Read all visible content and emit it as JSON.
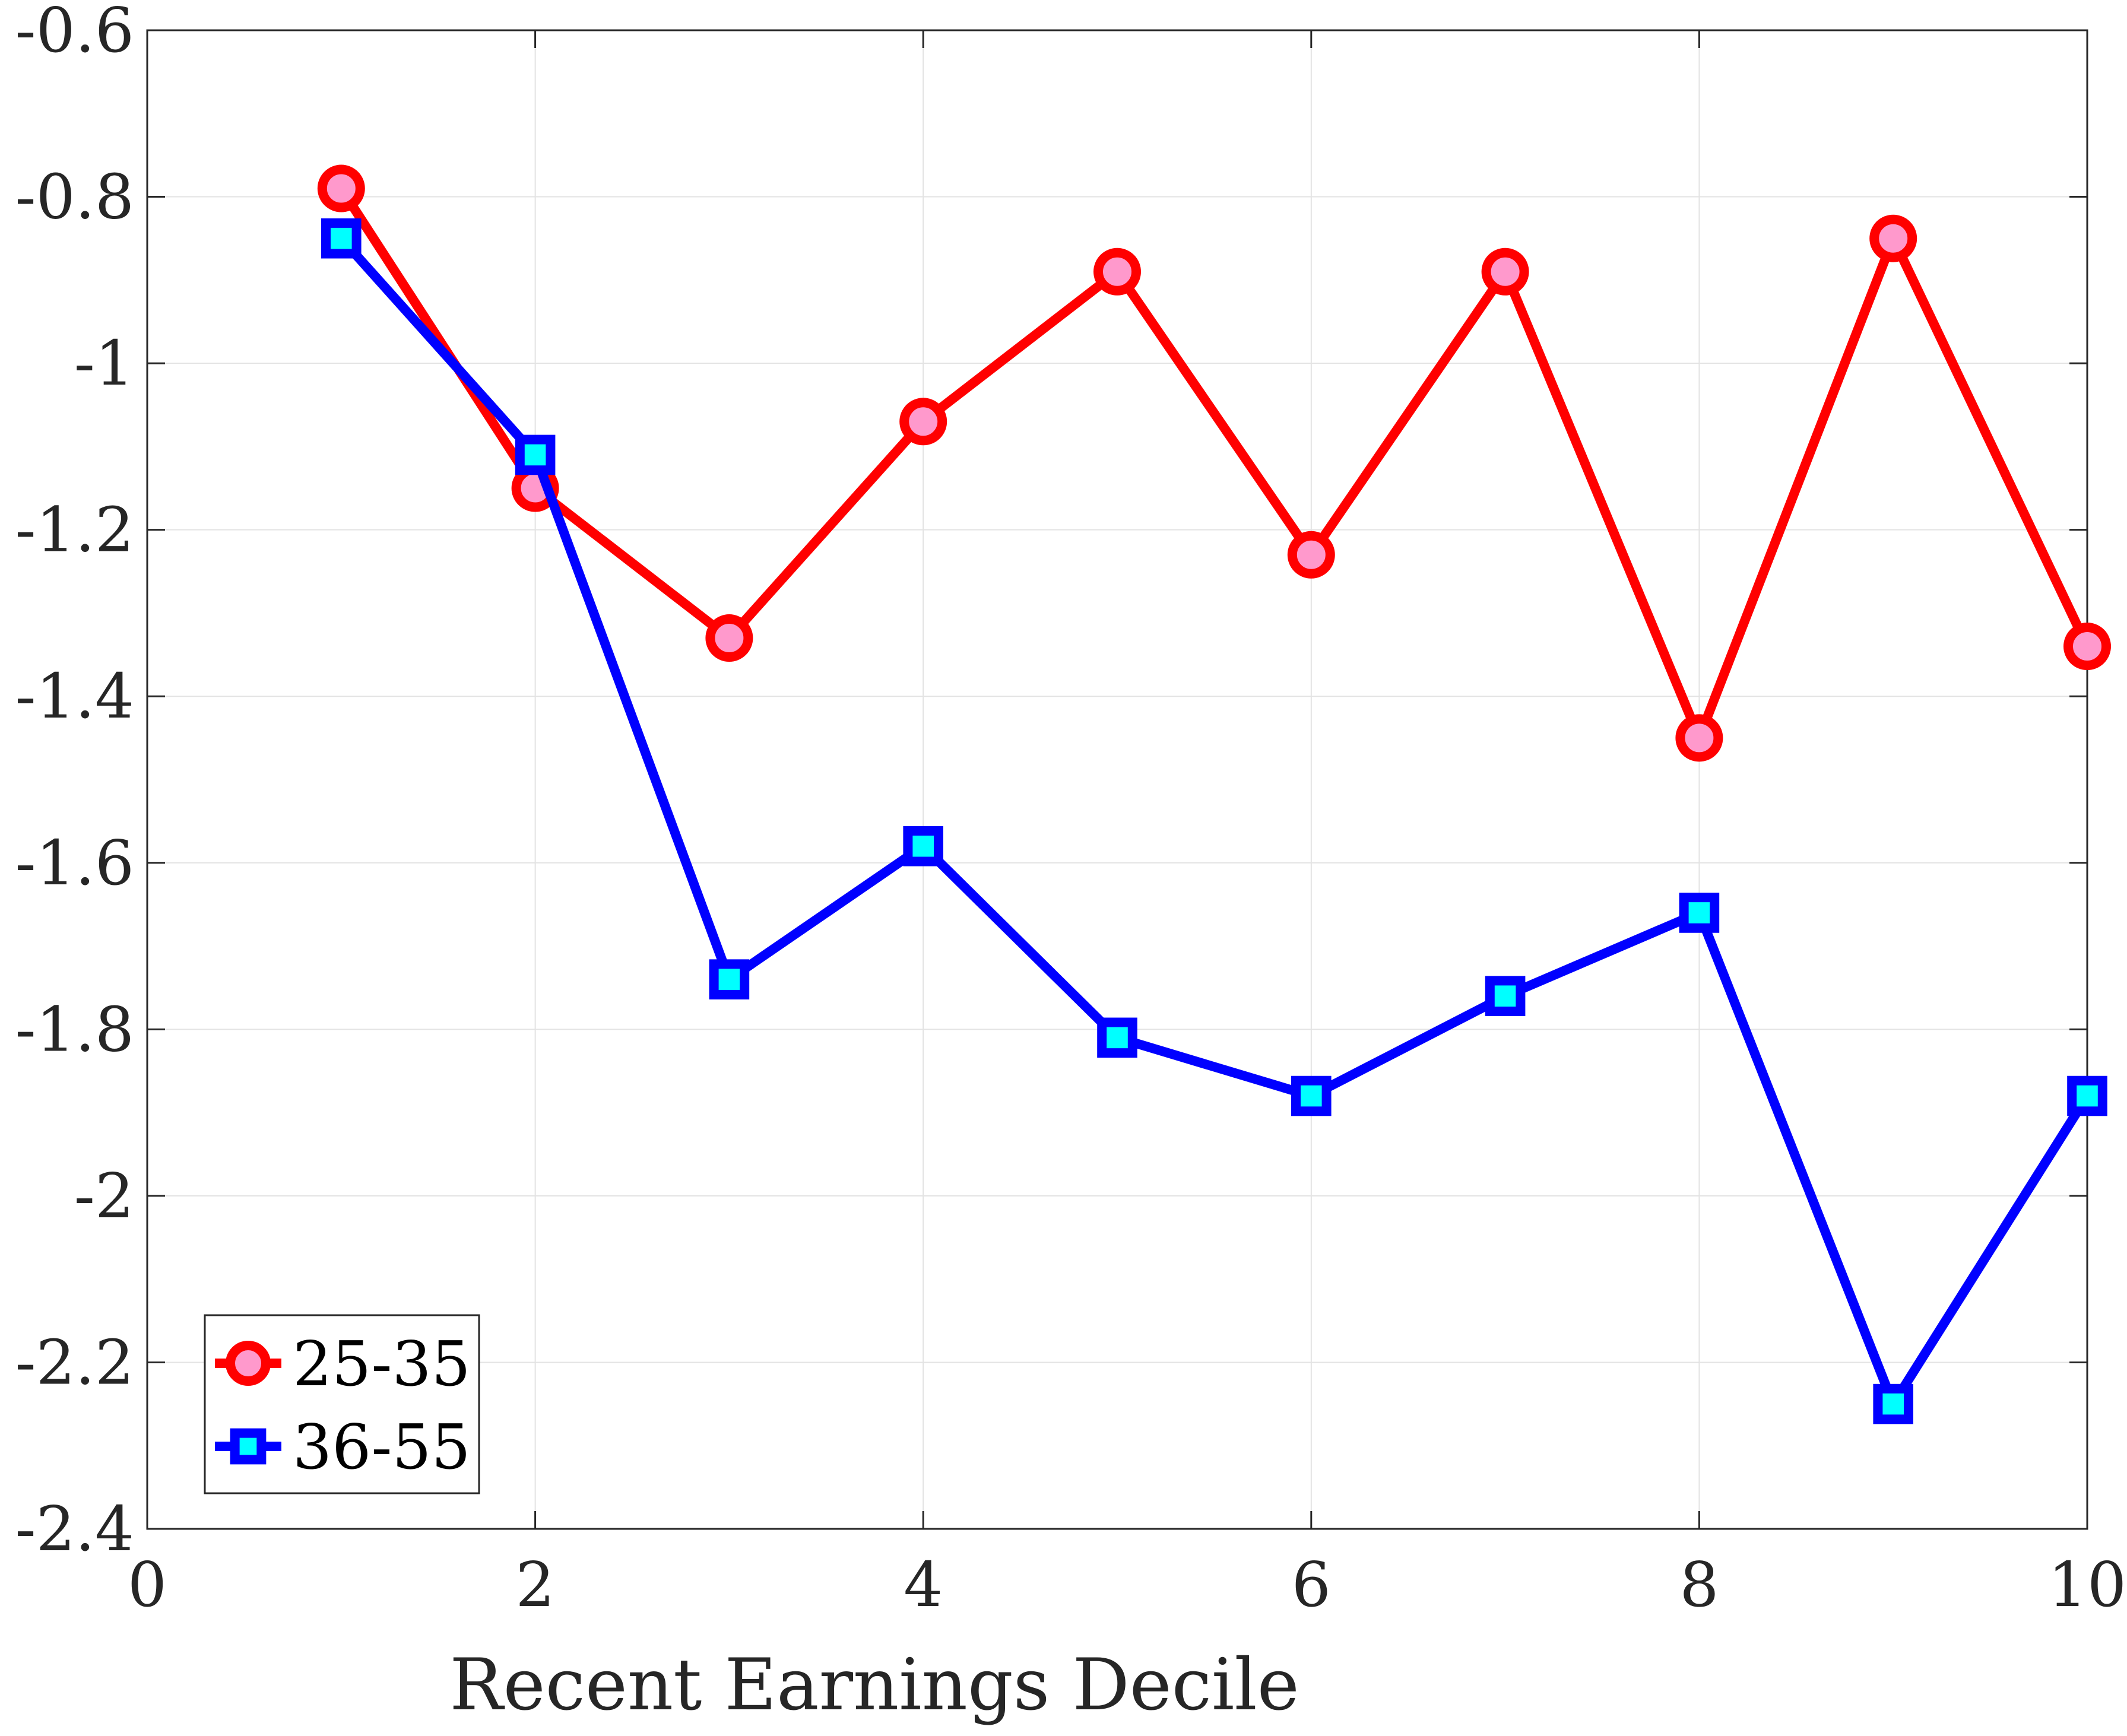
{
  "chart_data": {
    "type": "line",
    "title": "",
    "xlabel": "Recent Earnings Decile",
    "ylabel": "",
    "xlim": [
      0,
      10
    ],
    "ylim": [
      -2.4,
      -0.6
    ],
    "xticks": [
      0,
      2,
      4,
      6,
      8,
      10
    ],
    "yticks": [
      -0.6,
      -0.8,
      -1,
      -1.2,
      -1.4,
      -1.6,
      -1.8,
      -2,
      -2.2,
      -2.4
    ],
    "xtick_labels": [
      "0",
      "2",
      "4",
      "6",
      "8",
      "10"
    ],
    "ytick_labels": [
      "-0.6",
      "-0.8",
      "-1",
      "-1.2",
      "-1.4",
      "-1.6",
      "-1.8",
      "-2",
      "-2.2",
      "-2.4"
    ],
    "grid": true,
    "legend_position": "bottom-left",
    "x": [
      1,
      2,
      3,
      4,
      5,
      6,
      7,
      8,
      9,
      10
    ],
    "series": [
      {
        "name": "25-35",
        "color": "#ff0000",
        "marker": "circle",
        "marker_fill": "#ff99cc",
        "values": [
          -0.79,
          -1.15,
          -1.33,
          -1.07,
          -0.89,
          -1.23,
          -0.89,
          -1.45,
          -0.85,
          -1.34
        ]
      },
      {
        "name": "36-55",
        "color": "#0000ff",
        "marker": "square",
        "marker_fill": "#00ffff",
        "values": [
          -0.85,
          -1.11,
          -1.74,
          -1.58,
          -1.81,
          -1.88,
          -1.76,
          -1.66,
          -2.25,
          -1.88
        ]
      }
    ]
  }
}
